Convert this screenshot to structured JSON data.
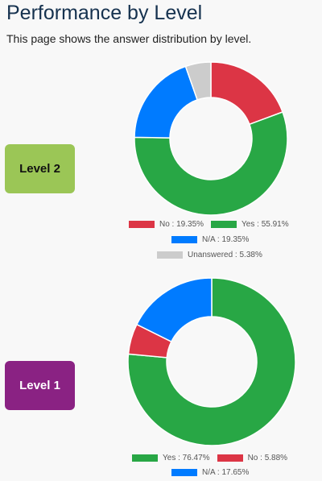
{
  "page": {
    "title": "Performance by Level",
    "description": "This page shows the answer distribution by level."
  },
  "levels": [
    {
      "label": "Level 2",
      "badge_color": "#9bc656",
      "badge_text_color": "#111111"
    },
    {
      "label": "Level 1",
      "badge_color": "#8a2283",
      "badge_text_color": "#ffffff"
    }
  ],
  "chart_data": [
    {
      "type": "donut",
      "slices": [
        {
          "label": "No",
          "value": 19.35,
          "color": "#dc3545",
          "legend_text": "No : 19.35%"
        },
        {
          "label": "Yes",
          "value": 55.91,
          "color": "#28a745",
          "legend_text": "Yes : 55.91%"
        },
        {
          "label": "N/A",
          "value": 19.35,
          "color": "#007bff",
          "legend_text": "N/A : 19.35%"
        },
        {
          "label": "Unanswered",
          "value": 5.38,
          "color": "#cccccc",
          "legend_text": "Unanswered : 5.38%"
        }
      ],
      "start": "top",
      "direction": "clockwise",
      "legend_position": "bottom"
    },
    {
      "type": "donut",
      "slices": [
        {
          "label": "Yes",
          "value": 76.47,
          "color": "#28a745",
          "legend_text": "Yes : 76.47%"
        },
        {
          "label": "No",
          "value": 5.88,
          "color": "#dc3545",
          "legend_text": "No : 5.88%"
        },
        {
          "label": "N/A",
          "value": 17.65,
          "color": "#007bff",
          "legend_text": "N/A : 17.65%"
        }
      ],
      "start": "top",
      "direction": "clockwise",
      "legend_position": "bottom"
    }
  ]
}
